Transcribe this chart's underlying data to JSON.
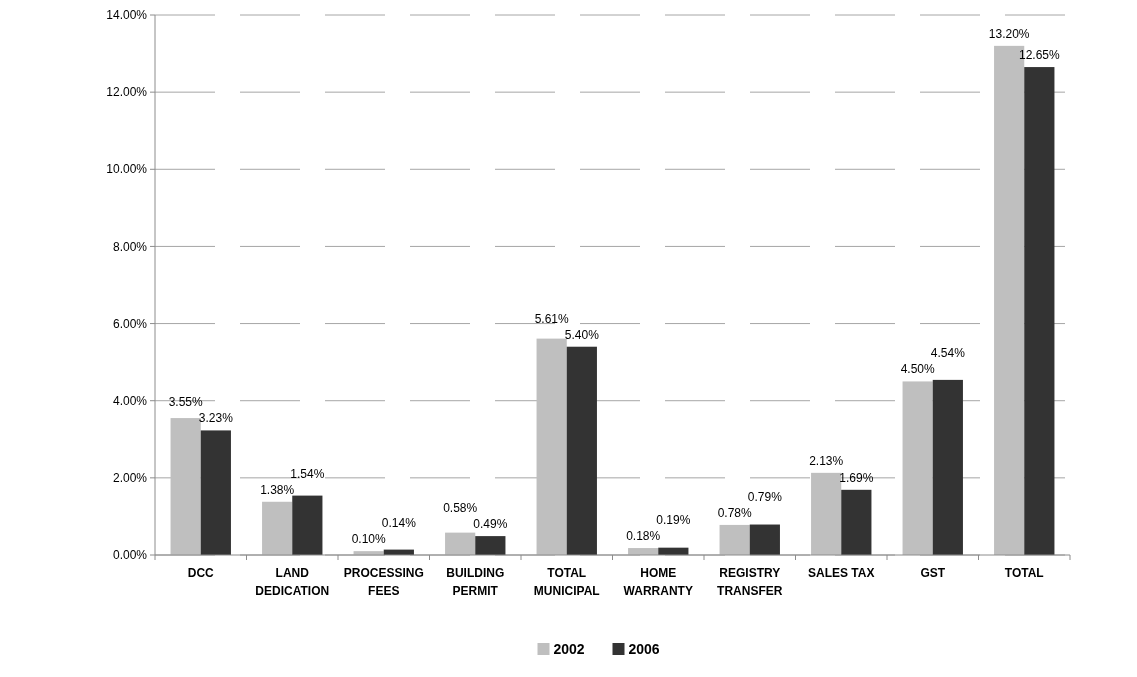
{
  "chart_data": {
    "type": "bar",
    "categories": [
      "DCC",
      "LAND DEDICATION",
      "PROCESSING FEES",
      "BUILDING PERMIT",
      "TOTAL MUNICIPAL",
      "HOME WARRANTY",
      "REGISTRY TRANSFER",
      "SALES TAX",
      "GST",
      "TOTAL"
    ],
    "series": [
      {
        "name": "2002",
        "color": "#bfbfbf",
        "values": [
          3.55,
          1.38,
          0.1,
          0.58,
          5.61,
          0.18,
          0.78,
          2.13,
          4.5,
          13.2
        ],
        "value_labels": [
          "3.55%",
          "1.38%",
          "0.10%",
          "0.58%",
          "5.61%",
          "0.18%",
          "0.78%",
          "2.13%",
          "4.50%",
          "13.20%"
        ]
      },
      {
        "name": "2006",
        "color": "#333333",
        "values": [
          3.23,
          1.54,
          0.14,
          0.49,
          5.4,
          0.19,
          0.79,
          1.69,
          4.54,
          12.65
        ],
        "value_labels": [
          "3.23%",
          "1.54%",
          "0.14%",
          "0.49%",
          "5.40%",
          "0.19%",
          "0.79%",
          "1.69%",
          "4.54%",
          "12.65%"
        ]
      }
    ],
    "ylim": [
      0,
      14
    ],
    "yticks": [
      {
        "value": 0,
        "label": "0.00%"
      },
      {
        "value": 2,
        "label": "2.00%"
      },
      {
        "value": 4,
        "label": "4.00%"
      },
      {
        "value": 6,
        "label": "6.00%"
      },
      {
        "value": 8,
        "label": "8.00%"
      },
      {
        "value": 10,
        "label": "10.00%"
      },
      {
        "value": 12,
        "label": "12.00%"
      },
      {
        "value": 14,
        "label": "14.00%"
      }
    ],
    "grid": "y",
    "legend": "bottom"
  }
}
